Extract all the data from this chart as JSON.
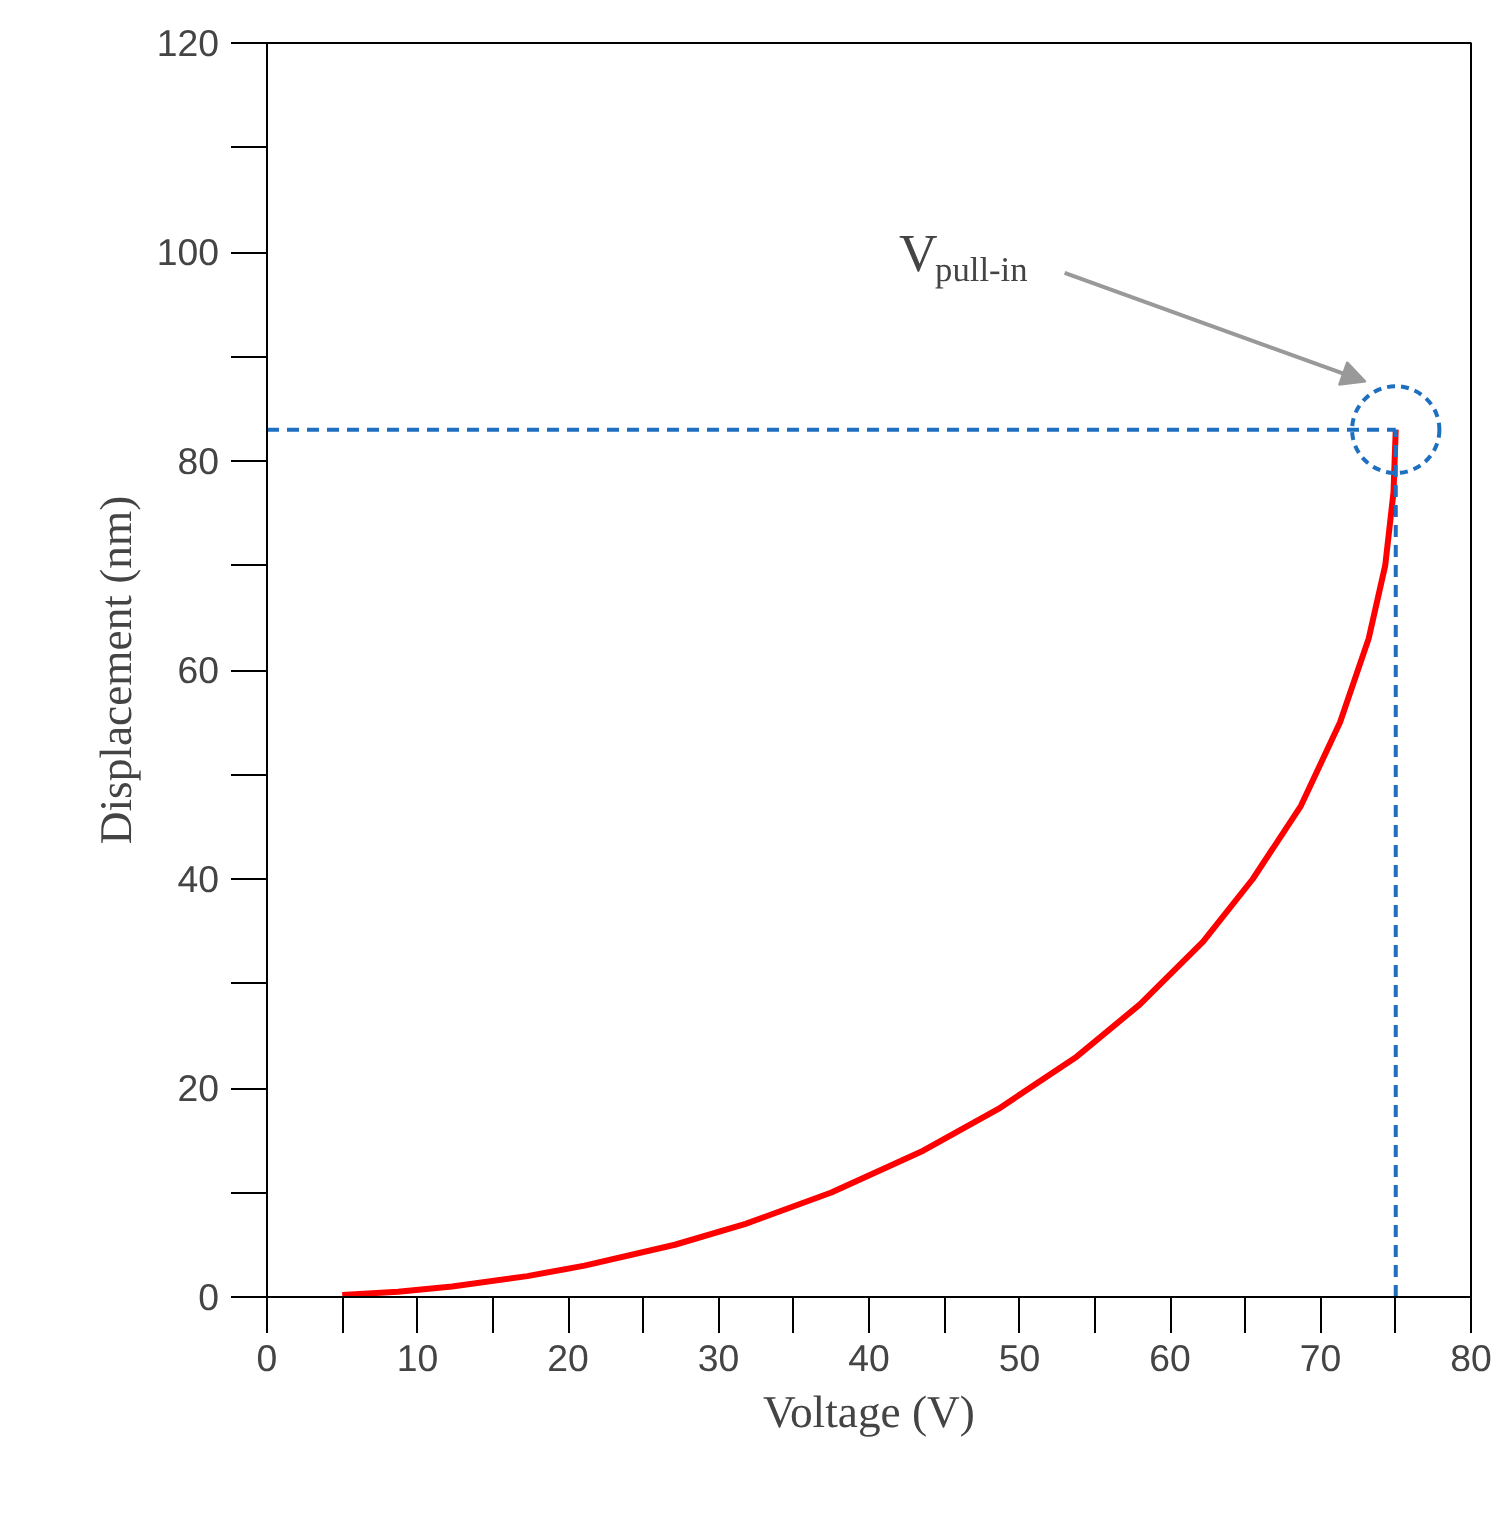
{
  "chart_data": {
    "type": "line",
    "xlabel": "Voltage (V)",
    "ylabel": "Displacement (nm)",
    "x": [
      5,
      8.7,
      12.3,
      17.3,
      21.1,
      27.1,
      31.8,
      37.5,
      43.6,
      48.6,
      53.8,
      58.0,
      62.2,
      65.5,
      68.7,
      71.3,
      73.2,
      74.3,
      74.85,
      75
    ],
    "series": [
      {
        "color": "#ff0000",
        "values": [
          0.2,
          0.5,
          1,
          2,
          3,
          5,
          7,
          10,
          14,
          18,
          23,
          28,
          34,
          40,
          47,
          55,
          63,
          70,
          77,
          83
        ]
      }
    ],
    "xlim": [
      0,
      80
    ],
    "ylim": [
      0,
      120
    ],
    "xticks": [
      0,
      10,
      20,
      30,
      40,
      50,
      60,
      70,
      80
    ],
    "yticks": [
      0,
      20,
      40,
      60,
      80,
      100,
      120
    ],
    "ref_lines": [
      {
        "axis": "y",
        "value": 83,
        "color": "#1f6fc0",
        "line_style": "dashed"
      },
      {
        "axis": "x",
        "value": 75,
        "color": "#1f6fc0",
        "line_style": "dashed"
      }
    ],
    "annotations": [
      "V$_{pull-in}$"
    ],
    "grid": false,
    "marker": "none",
    "line_style": "solid"
  }
}
